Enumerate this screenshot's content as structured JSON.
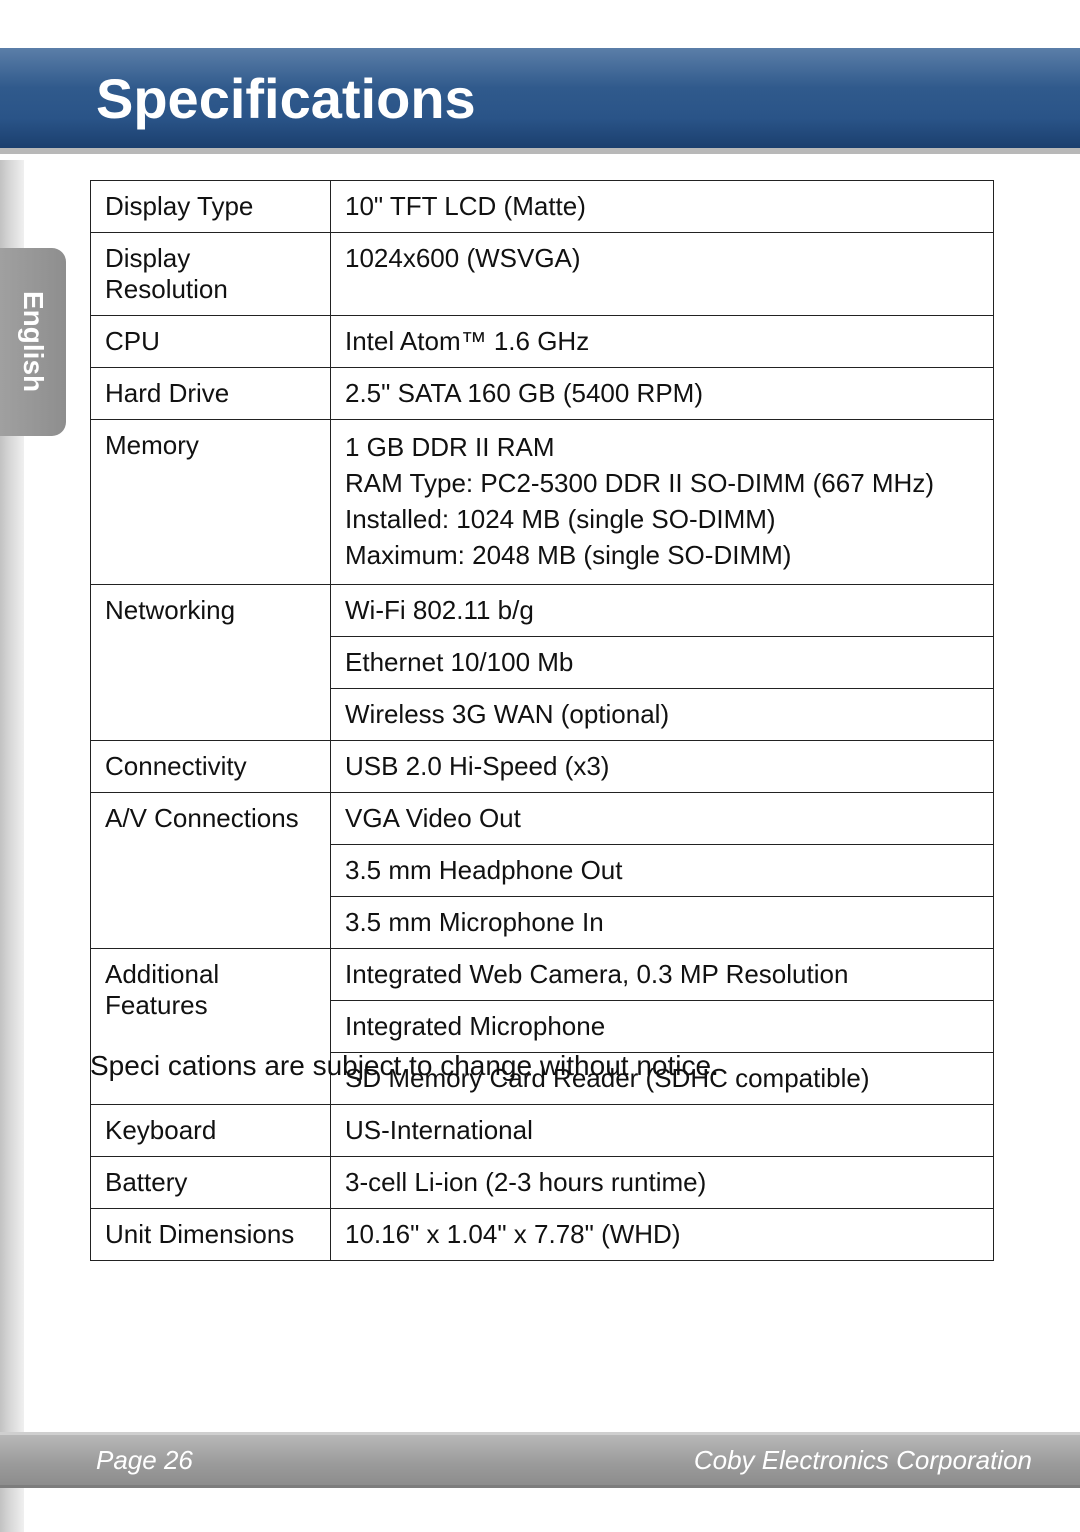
{
  "title": "Specifications",
  "language_tab": "English",
  "table": {
    "rows": [
      {
        "label": "Display Type",
        "values": [
          "10\" TFT LCD (Matte)"
        ]
      },
      {
        "label": "Display Resolution",
        "values": [
          "1024x600 (WSVGA)"
        ]
      },
      {
        "label": "CPU",
        "values": [
          "Intel Atom™ 1.6 GHz"
        ]
      },
      {
        "label": "Hard Drive",
        "values": [
          "2.5\" SATA 160 GB (5400 RPM)"
        ]
      },
      {
        "label": "Memory",
        "values": [
          "1 GB DDR II RAM\nRAM Type: PC2-5300 DDR II SO-DIMM (667 MHz)\nInstalled: 1024 MB (single SO-DIMM)\nMaximum: 2048 MB (single SO-DIMM)"
        ]
      },
      {
        "label": "Networking",
        "values": [
          "Wi-Fi 802.11 b/g",
          "Ethernet 10/100 Mb",
          "Wireless 3G WAN (optional)"
        ]
      },
      {
        "label": "Connectivity",
        "values": [
          "USB 2.0 Hi-Speed (x3)"
        ]
      },
      {
        "label": "A/V Connections",
        "values": [
          "VGA Video Out",
          "3.5 mm Headphone Out",
          "3.5 mm Microphone In"
        ]
      },
      {
        "label": "Additional Features",
        "values": [
          "Integrated Web Camera, 0.3 MP Resolution",
          "Integrated Microphone",
          "SD Memory Card Reader (SDHC compatible)"
        ]
      },
      {
        "label": "Keyboard",
        "values": [
          "US-International"
        ]
      },
      {
        "label": "Battery",
        "values": [
          "3-cell Li-ion (2-3 hours runtime)"
        ]
      },
      {
        "label": "Unit Dimensions",
        "values": [
          "10.16\" x 1.04\" x 7.78\" (WHD)"
        ]
      }
    ]
  },
  "footnote": "Speci cations are subject to change without notice.",
  "footer": {
    "left": "Page 26",
    "right": "Coby Electronics Corporation"
  },
  "colors": {
    "titlebar_gradient": [
      "#5b7ea8",
      "#305a8c",
      "#2a5488",
      "#1b3f6e"
    ],
    "titlebar_border": "#b8b8b8",
    "sidetab_gradient": [
      "#a0a0a0",
      "#8e8e8e"
    ],
    "table_border": "#222222",
    "text": "#111111",
    "footer_gradient": [
      "#b8b8b8",
      "#9a9a9a",
      "#8d8d8d"
    ],
    "background": "#ffffff"
  },
  "typography": {
    "title_fontsize": 56,
    "cell_fontsize": 26,
    "footnote_fontsize": 28,
    "footer_fontsize": 26
  }
}
